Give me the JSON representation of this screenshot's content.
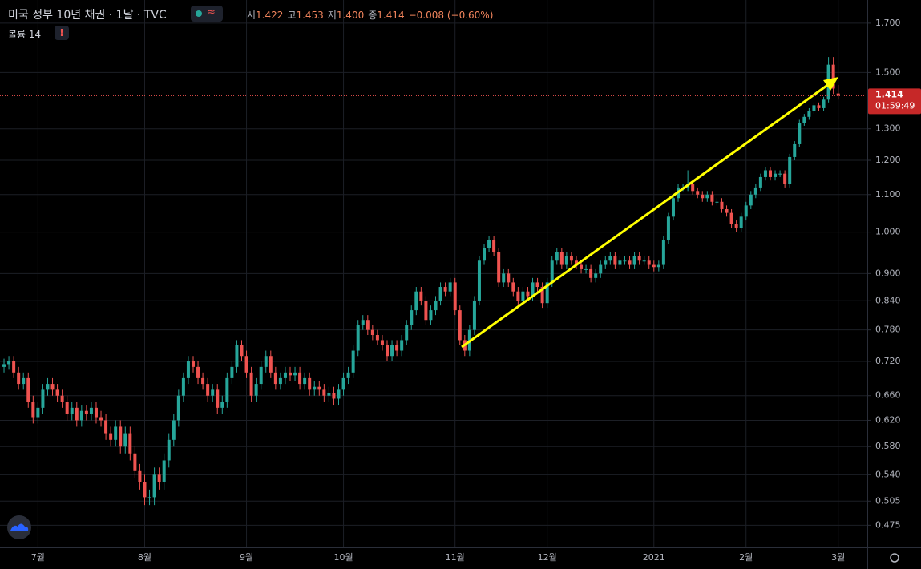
{
  "header": {
    "title": "미국 정부 10년 채권 · 1날 · TVC",
    "ohlc": [
      {
        "label": "시",
        "value": "1.422"
      },
      {
        "label": "고",
        "value": "1.453"
      },
      {
        "label": "저",
        "value": "1.400"
      },
      {
        "label": "종",
        "value": "1.414"
      }
    ],
    "change": "−0.008 (−0.60%)",
    "volume_label": "볼륨",
    "volume": 14
  },
  "chart_data": {
    "type": "candlestick",
    "log_scale": true,
    "grid": true,
    "up_color": "#26a69a",
    "down_color": "#ef5350",
    "last_price": {
      "value": 1.414,
      "label": "1.414"
    },
    "countdown": "01:59:49",
    "xlim": [
      -0.83,
      178
    ],
    "ylim": [
      0.449,
      1.803
    ],
    "xticks": [
      {
        "value": 7,
        "label": "7월"
      },
      {
        "value": 29,
        "label": "8월"
      },
      {
        "value": 50,
        "label": "9월"
      },
      {
        "value": 70,
        "label": "10월"
      },
      {
        "value": 93,
        "label": "11월"
      },
      {
        "value": 112,
        "label": "12월"
      },
      {
        "value": 134,
        "label": "2021"
      },
      {
        "value": 153,
        "label": "2월"
      },
      {
        "value": 172,
        "label": "3월"
      }
    ],
    "yticks": [
      {
        "value": 1.7,
        "label": "1.700"
      },
      {
        "value": 1.5,
        "label": "1.500"
      },
      {
        "value": 1.3,
        "label": "1.300"
      },
      {
        "value": 1.2,
        "label": "1.200"
      },
      {
        "value": 1.1,
        "label": "1.100"
      },
      {
        "value": 1.0,
        "label": "1.000"
      },
      {
        "value": 0.9,
        "label": "0.900"
      },
      {
        "value": 0.84,
        "label": "0.840"
      },
      {
        "value": 0.78,
        "label": "0.780"
      },
      {
        "value": 0.72,
        "label": "0.720"
      },
      {
        "value": 0.66,
        "label": "0.660"
      },
      {
        "value": 0.62,
        "label": "0.620"
      },
      {
        "value": 0.58,
        "label": "0.580"
      },
      {
        "value": 0.54,
        "label": "0.540"
      },
      {
        "value": 0.505,
        "label": "0.505"
      },
      {
        "value": 0.475,
        "label": "0.475"
      }
    ],
    "open": [
      0.71,
      0.715,
      0.72,
      0.7,
      0.68,
      0.69,
      0.65,
      0.625,
      0.64,
      0.67,
      0.68,
      0.67,
      0.66,
      0.65,
      0.63,
      0.64,
      0.62,
      0.635,
      0.63,
      0.64,
      0.625,
      0.62,
      0.6,
      0.59,
      0.61,
      0.58,
      0.6,
      0.57,
      0.545,
      0.53,
      0.51,
      0.51,
      0.54,
      0.53,
      0.56,
      0.59,
      0.62,
      0.66,
      0.69,
      0.72,
      0.71,
      0.69,
      0.68,
      0.66,
      0.67,
      0.64,
      0.65,
      0.69,
      0.71,
      0.75,
      0.73,
      0.7,
      0.66,
      0.68,
      0.71,
      0.73,
      0.7,
      0.68,
      0.69,
      0.7,
      0.695,
      0.7,
      0.68,
      0.69,
      0.67,
      0.675,
      0.67,
      0.66,
      0.665,
      0.655,
      0.67,
      0.69,
      0.7,
      0.74,
      0.79,
      0.8,
      0.78,
      0.77,
      0.76,
      0.75,
      0.73,
      0.75,
      0.74,
      0.76,
      0.79,
      0.82,
      0.86,
      0.84,
      0.8,
      0.82,
      0.84,
      0.87,
      0.86,
      0.88,
      0.82,
      0.76,
      0.74,
      0.78,
      0.84,
      0.93,
      0.96,
      0.98,
      0.95,
      0.88,
      0.9,
      0.88,
      0.86,
      0.84,
      0.86,
      0.85,
      0.88,
      0.87,
      0.835,
      0.88,
      0.93,
      0.95,
      0.92,
      0.94,
      0.93,
      0.92,
      0.91,
      0.91,
      0.89,
      0.9,
      0.92,
      0.93,
      0.94,
      0.92,
      0.93,
      0.93,
      0.92,
      0.94,
      0.93,
      0.93,
      0.92,
      0.915,
      0.92,
      0.98,
      1.04,
      1.09,
      1.12,
      1.12,
      1.13,
      1.11,
      1.1,
      1.09,
      1.1,
      1.08,
      1.08,
      1.06,
      1.05,
      1.02,
      1.01,
      1.04,
      1.07,
      1.1,
      1.12,
      1.15,
      1.17,
      1.15,
      1.16,
      1.16,
      1.13,
      1.21,
      1.25,
      1.32,
      1.34,
      1.36,
      1.38,
      1.37,
      1.4,
      1.53,
      1.422
    ],
    "high": [
      0.725,
      0.73,
      0.73,
      0.71,
      0.7,
      0.7,
      0.66,
      0.65,
      0.68,
      0.69,
      0.69,
      0.68,
      0.67,
      0.66,
      0.65,
      0.65,
      0.645,
      0.645,
      0.65,
      0.65,
      0.635,
      0.63,
      0.61,
      0.62,
      0.62,
      0.61,
      0.61,
      0.58,
      0.555,
      0.54,
      0.52,
      0.55,
      0.55,
      0.57,
      0.6,
      0.63,
      0.67,
      0.7,
      0.73,
      0.73,
      0.72,
      0.7,
      0.69,
      0.68,
      0.68,
      0.66,
      0.7,
      0.72,
      0.76,
      0.76,
      0.74,
      0.71,
      0.69,
      0.72,
      0.74,
      0.74,
      0.71,
      0.7,
      0.71,
      0.71,
      0.71,
      0.71,
      0.7,
      0.7,
      0.685,
      0.685,
      0.68,
      0.675,
      0.675,
      0.68,
      0.7,
      0.71,
      0.75,
      0.8,
      0.81,
      0.81,
      0.79,
      0.78,
      0.77,
      0.76,
      0.76,
      0.76,
      0.77,
      0.8,
      0.83,
      0.87,
      0.87,
      0.85,
      0.83,
      0.85,
      0.88,
      0.88,
      0.89,
      0.89,
      0.83,
      0.77,
      0.79,
      0.85,
      0.94,
      0.97,
      0.99,
      0.99,
      0.96,
      0.91,
      0.91,
      0.89,
      0.87,
      0.87,
      0.87,
      0.89,
      0.89,
      0.88,
      0.89,
      0.94,
      0.96,
      0.96,
      0.95,
      0.95,
      0.94,
      0.93,
      0.92,
      0.92,
      0.91,
      0.93,
      0.94,
      0.95,
      0.95,
      0.94,
      0.94,
      0.94,
      0.95,
      0.95,
      0.94,
      0.94,
      0.93,
      0.93,
      0.99,
      1.05,
      1.1,
      1.13,
      1.13,
      1.17,
      1.14,
      1.12,
      1.11,
      1.11,
      1.11,
      1.09,
      1.09,
      1.07,
      1.06,
      1.03,
      1.05,
      1.08,
      1.11,
      1.13,
      1.16,
      1.18,
      1.18,
      1.17,
      1.17,
      1.17,
      1.22,
      1.26,
      1.33,
      1.35,
      1.37,
      1.39,
      1.39,
      1.41,
      1.56,
      1.56,
      1.453
    ],
    "low": [
      0.7,
      0.705,
      0.69,
      0.67,
      0.67,
      0.64,
      0.615,
      0.615,
      0.63,
      0.66,
      0.66,
      0.65,
      0.64,
      0.62,
      0.62,
      0.61,
      0.61,
      0.62,
      0.62,
      0.615,
      0.61,
      0.59,
      0.58,
      0.58,
      0.57,
      0.57,
      0.56,
      0.535,
      0.52,
      0.5,
      0.5,
      0.5,
      0.52,
      0.52,
      0.55,
      0.58,
      0.61,
      0.65,
      0.68,
      0.7,
      0.68,
      0.67,
      0.65,
      0.65,
      0.63,
      0.63,
      0.64,
      0.68,
      0.7,
      0.72,
      0.69,
      0.65,
      0.65,
      0.67,
      0.7,
      0.69,
      0.67,
      0.67,
      0.68,
      0.685,
      0.685,
      0.67,
      0.67,
      0.66,
      0.66,
      0.66,
      0.65,
      0.65,
      0.645,
      0.645,
      0.66,
      0.68,
      0.69,
      0.73,
      0.78,
      0.77,
      0.76,
      0.75,
      0.74,
      0.72,
      0.72,
      0.73,
      0.73,
      0.75,
      0.78,
      0.81,
      0.83,
      0.79,
      0.79,
      0.81,
      0.83,
      0.85,
      0.85,
      0.81,
      0.75,
      0.73,
      0.73,
      0.77,
      0.83,
      0.92,
      0.95,
      0.94,
      0.87,
      0.87,
      0.87,
      0.85,
      0.83,
      0.83,
      0.84,
      0.84,
      0.86,
      0.825,
      0.825,
      0.87,
      0.92,
      0.91,
      0.91,
      0.92,
      0.91,
      0.9,
      0.9,
      0.88,
      0.88,
      0.89,
      0.91,
      0.92,
      0.91,
      0.91,
      0.92,
      0.91,
      0.91,
      0.92,
      0.92,
      0.91,
      0.905,
      0.905,
      0.91,
      0.97,
      1.03,
      1.08,
      1.11,
      1.11,
      1.1,
      1.09,
      1.08,
      1.08,
      1.07,
      1.07,
      1.05,
      1.04,
      1.01,
      1.0,
      1.0,
      1.03,
      1.06,
      1.09,
      1.11,
      1.14,
      1.14,
      1.14,
      1.15,
      1.12,
      1.12,
      1.2,
      1.24,
      1.31,
      1.33,
      1.35,
      1.36,
      1.36,
      1.39,
      1.42,
      1.4
    ],
    "close": [
      0.715,
      0.72,
      0.7,
      0.68,
      0.69,
      0.65,
      0.625,
      0.64,
      0.67,
      0.68,
      0.67,
      0.66,
      0.65,
      0.63,
      0.64,
      0.62,
      0.635,
      0.63,
      0.64,
      0.625,
      0.62,
      0.6,
      0.59,
      0.61,
      0.58,
      0.6,
      0.57,
      0.545,
      0.53,
      0.51,
      0.51,
      0.54,
      0.53,
      0.56,
      0.59,
      0.62,
      0.66,
      0.69,
      0.72,
      0.71,
      0.69,
      0.68,
      0.66,
      0.67,
      0.64,
      0.65,
      0.69,
      0.71,
      0.75,
      0.73,
      0.7,
      0.66,
      0.68,
      0.71,
      0.73,
      0.7,
      0.68,
      0.69,
      0.7,
      0.695,
      0.7,
      0.68,
      0.69,
      0.67,
      0.675,
      0.67,
      0.66,
      0.665,
      0.655,
      0.67,
      0.69,
      0.7,
      0.74,
      0.79,
      0.8,
      0.78,
      0.77,
      0.76,
      0.75,
      0.73,
      0.75,
      0.74,
      0.76,
      0.79,
      0.82,
      0.86,
      0.84,
      0.8,
      0.82,
      0.84,
      0.87,
      0.86,
      0.88,
      0.82,
      0.76,
      0.74,
      0.78,
      0.84,
      0.93,
      0.96,
      0.98,
      0.95,
      0.88,
      0.9,
      0.88,
      0.86,
      0.84,
      0.86,
      0.85,
      0.88,
      0.87,
      0.835,
      0.88,
      0.93,
      0.95,
      0.92,
      0.94,
      0.93,
      0.92,
      0.91,
      0.91,
      0.89,
      0.9,
      0.92,
      0.93,
      0.94,
      0.92,
      0.93,
      0.93,
      0.92,
      0.94,
      0.93,
      0.93,
      0.92,
      0.915,
      0.92,
      0.98,
      1.04,
      1.09,
      1.12,
      1.12,
      1.13,
      1.11,
      1.1,
      1.09,
      1.1,
      1.08,
      1.08,
      1.06,
      1.05,
      1.02,
      1.01,
      1.04,
      1.07,
      1.1,
      1.12,
      1.15,
      1.17,
      1.15,
      1.16,
      1.16,
      1.13,
      1.21,
      1.25,
      1.32,
      1.34,
      1.36,
      1.38,
      1.37,
      1.4,
      1.53,
      1.44,
      1.414
    ]
  }
}
